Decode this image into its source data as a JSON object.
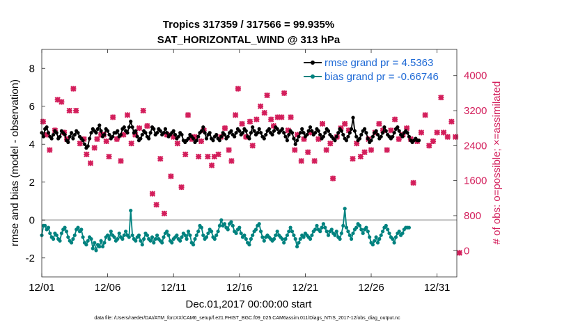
{
  "chart_data": {
    "type": "line",
    "title": [
      "Tropics 317359 / 317566 = 99.935%",
      "SAT_HORIZONTAL_WIND @ 313 hPa"
    ],
    "xlabel": "Dec.01,2017 00:00:00 start",
    "ylabel": "rmse and bias (model - observation)",
    "y2label": "# of obs: o=possible; ×=assimilated",
    "footnote": "data file: /Users/raeder/DAI/ATM_forcXX/CAM6_setup/f.e21.FHIST_BGC.f09_025.CAM6assim.011/Diags_NTrS_2017-12/obs_diag_output.nc",
    "x_range": [
      0,
      31.5
    ],
    "ylim": [
      -3,
      9
    ],
    "y2lim": [
      -600,
      4600
    ],
    "x_ticks": [
      0,
      5,
      10,
      15,
      20,
      25,
      30
    ],
    "x_tick_labels": [
      "12/01",
      "12/06",
      "12/11",
      "12/16",
      "12/21",
      "12/26",
      "12/31"
    ],
    "y_ticks": [
      -2,
      0,
      2,
      4,
      6,
      8
    ],
    "y2_ticks": [
      0,
      800,
      1600,
      2400,
      3200,
      4000
    ],
    "zero_line": 0,
    "x_step_days": 0.125,
    "series": [
      {
        "name": "rmse",
        "legend": "rmse grand pr = 4.5363",
        "axis": "left",
        "color": "#000000",
        "values": [
          4.6,
          4.4,
          4.8,
          4.9,
          4.6,
          4.4,
          4.3,
          4.5,
          4.7,
          4.6,
          4.3,
          4.4,
          4.7,
          4.6,
          4.5,
          4.2,
          4.1,
          4.4,
          4.6,
          4.3,
          4.5,
          4.7,
          4.6,
          4.4,
          4.3,
          4.2,
          4.0,
          3.8,
          3.9,
          4.3,
          4.6,
          4.8,
          4.7,
          4.6,
          4.8,
          5.0,
          4.7,
          4.4,
          4.5,
          4.8,
          4.7,
          4.5,
          4.3,
          4.4,
          4.6,
          4.6,
          4.7,
          4.4,
          4.5,
          4.8,
          4.9,
          4.7,
          4.6,
          4.9,
          5.2,
          4.9,
          4.6,
          4.7,
          4.4,
          4.2,
          4.3,
          4.5,
          4.7,
          4.6,
          4.4,
          4.3,
          4.6,
          4.9,
          4.8,
          4.5,
          4.6,
          4.8,
          4.7,
          4.5,
          4.6,
          4.8,
          4.6,
          4.4,
          4.5,
          4.6,
          4.7,
          4.5,
          4.3,
          4.4,
          4.6,
          4.5,
          4.2,
          4.1,
          4.2,
          4.3,
          4.5,
          4.4,
          4.3,
          4.1,
          4.2,
          4.4,
          4.6,
          4.7,
          4.9,
          4.6,
          4.3,
          4.5,
          4.6,
          4.3,
          4.2,
          4.4,
          4.5,
          4.3,
          4.2,
          4.4,
          4.6,
          4.5,
          4.3,
          4.4,
          4.6,
          4.7,
          4.5,
          4.4,
          4.6,
          4.8,
          4.7,
          4.5,
          4.6,
          4.8,
          4.7,
          4.4,
          4.3,
          4.6,
          4.9,
          4.7,
          4.5,
          4.6,
          4.8,
          4.6,
          4.4,
          4.3,
          4.5,
          4.7,
          4.8,
          4.6,
          4.5,
          4.7,
          4.9,
          4.8,
          4.6,
          4.7,
          4.8,
          4.6,
          4.4,
          4.2,
          4.5,
          4.7,
          4.6,
          4.3,
          4.0,
          4.2,
          4.4,
          4.6,
          4.8,
          4.6,
          4.4,
          4.5,
          4.7,
          4.9,
          4.7,
          4.5,
          4.6,
          4.8,
          4.7,
          4.5,
          4.3,
          4.4,
          4.6,
          4.8,
          4.7,
          4.5,
          4.4,
          4.3,
          4.2,
          4.4,
          4.6,
          4.8,
          4.7,
          4.5,
          4.3,
          4.2,
          4.4,
          4.6,
          4.8,
          5.4,
          4.7,
          4.4,
          4.2,
          4.3,
          4.5,
          4.7,
          4.8,
          4.6,
          4.3,
          4.1,
          4.2,
          4.4,
          4.6,
          4.7,
          4.5,
          4.3,
          4.4,
          4.6,
          4.9,
          4.7,
          4.5,
          4.4,
          4.3,
          4.4,
          4.6,
          4.8,
          4.9,
          4.7,
          4.5,
          4.4,
          4.6,
          4.7,
          4.6,
          4.4,
          4.2,
          4.1,
          4.2,
          4.3,
          4.2,
          4.2
        ]
      },
      {
        "name": "bias",
        "legend": "bias grand pr = -0.66746",
        "axis": "left",
        "color": "#00827f",
        "values": [
          -0.8,
          -0.3,
          -0.3,
          -0.5,
          -0.4,
          -0.7,
          -0.9,
          -1.0,
          -0.7,
          -0.8,
          -1.0,
          -1.1,
          -0.7,
          -0.5,
          -0.4,
          -0.6,
          -0.9,
          -1.1,
          -1.2,
          -1.0,
          -0.8,
          -0.5,
          -0.4,
          -0.6,
          -0.5,
          -0.9,
          -1.2,
          -1.3,
          -1.1,
          -0.9,
          -1.0,
          -1.5,
          -1.2,
          -1.6,
          -1.3,
          -1.4,
          -1.1,
          -1.4,
          -1.2,
          -0.9,
          -0.8,
          -1.0,
          -0.6,
          -0.8,
          -0.9,
          -1.1,
          -1.0,
          -0.7,
          -0.9,
          -1.0,
          -0.8,
          -0.6,
          -0.8,
          -0.9,
          0.5,
          -0.8,
          -1.0,
          -1.1,
          -0.9,
          -0.8,
          -1.1,
          -1.3,
          -1.0,
          -0.7,
          -0.8,
          -1.0,
          -1.1,
          -0.9,
          -1.2,
          -1.0,
          -0.8,
          -1.0,
          -1.1,
          -1.2,
          -0.9,
          -0.7,
          -0.6,
          -0.8,
          -1.1,
          -1.2,
          -1.0,
          -0.9,
          -0.8,
          -1.0,
          -1.1,
          -0.9,
          -0.7,
          -0.8,
          -1.0,
          -0.6,
          -0.8,
          -1.2,
          -1.3,
          -1.0,
          -0.8,
          -0.6,
          -0.3,
          -0.4,
          -0.8,
          -1.0,
          -0.9,
          -0.7,
          -0.5,
          -0.6,
          -0.9,
          -1.0,
          -0.8,
          -0.6,
          -0.3,
          0.0,
          -0.3,
          -0.2,
          -0.4,
          -0.5,
          -0.2,
          -0.1,
          -0.3,
          -0.6,
          -0.7,
          -0.5,
          -0.4,
          -0.7,
          -0.9,
          -0.8,
          -1.0,
          -1.2,
          -1.3,
          -1.0,
          -0.8,
          -0.6,
          -0.5,
          -0.3,
          -0.2,
          -0.6,
          -0.9,
          -1.1,
          -0.9,
          -0.8,
          -0.9,
          -1.0,
          -1.1,
          -1.0,
          -0.8,
          -0.6,
          -0.8,
          -0.9,
          -1.0,
          -1.2,
          -1.0,
          -0.8,
          -0.6,
          -0.4,
          -0.6,
          -0.8,
          -1.0,
          -1.4,
          -1.2,
          -1.0,
          -0.8,
          -0.9,
          -0.7,
          -0.8,
          -0.9,
          -1.0,
          -0.8,
          -0.6,
          -0.5,
          -0.3,
          -0.5,
          -0.6,
          -0.4,
          -0.2,
          -0.4,
          -0.6,
          -0.8,
          -0.6,
          -0.5,
          -0.7,
          -0.8,
          -0.6,
          -0.9,
          -1.0,
          -0.7,
          -0.3,
          0.6,
          -0.4,
          -0.6,
          -0.8,
          -1.0,
          -0.7,
          -0.5,
          -0.4,
          -0.2,
          -0.3,
          -0.5,
          -0.7,
          -0.5,
          -0.4,
          -0.6,
          -0.9,
          -1.2,
          -1.3,
          -1.1,
          -0.9,
          -1.2,
          -1.0,
          -0.8,
          -0.6,
          -0.4,
          -0.3,
          -0.5,
          -0.7,
          -0.9,
          -1.0,
          -1.2,
          -0.9,
          -0.7,
          -0.6,
          -0.8,
          -0.7,
          -0.5,
          -0.4,
          -0.4,
          -0.4
        ]
      },
      {
        "name": "# obs assimilated",
        "axis": "right",
        "color": "#d31e5b",
        "marker": "x",
        "points": [
          [
            0.1,
            2950
          ],
          [
            0.4,
            2650
          ],
          [
            0.6,
            2300
          ],
          [
            1.0,
            2750
          ],
          [
            1.2,
            3450
          ],
          [
            1.5,
            3400
          ],
          [
            1.7,
            2700
          ],
          [
            1.9,
            2550
          ],
          [
            2.1,
            3200
          ],
          [
            2.4,
            3700
          ],
          [
            2.6,
            3200
          ],
          [
            2.9,
            2450
          ],
          [
            3.2,
            2550
          ],
          [
            3.4,
            2200
          ],
          [
            3.7,
            2000
          ],
          [
            4.0,
            2350
          ],
          [
            4.2,
            2550
          ],
          [
            4.5,
            2650
          ],
          [
            4.7,
            2650
          ],
          [
            4.9,
            2500
          ],
          [
            5.1,
            2150
          ],
          [
            5.4,
            3050
          ],
          [
            5.7,
            2550
          ],
          [
            6.0,
            2050
          ],
          [
            6.2,
            2650
          ],
          [
            6.5,
            3100
          ],
          [
            6.8,
            2450
          ],
          [
            7.1,
            2650
          ],
          [
            7.4,
            2800
          ],
          [
            7.7,
            3200
          ],
          [
            8.0,
            2850
          ],
          [
            8.4,
            1300
          ],
          [
            8.7,
            1050
          ],
          [
            9.0,
            2100
          ],
          [
            9.3,
            850
          ],
          [
            9.5,
            2650
          ],
          [
            9.8,
            1700
          ],
          [
            10.0,
            2600
          ],
          [
            10.3,
            2450
          ],
          [
            10.6,
            1450
          ],
          [
            10.9,
            2200
          ],
          [
            11.1,
            3100
          ],
          [
            11.4,
            2550
          ],
          [
            11.6,
            2600
          ],
          [
            11.9,
            2150
          ],
          [
            12.1,
            2500
          ],
          [
            12.3,
            2750
          ],
          [
            12.6,
            2150
          ],
          [
            12.9,
            1950
          ],
          [
            13.1,
            2150
          ],
          [
            13.4,
            2200
          ],
          [
            13.6,
            2600
          ],
          [
            13.9,
            2800
          ],
          [
            14.2,
            2300
          ],
          [
            14.4,
            2050
          ],
          [
            14.7,
            3100
          ],
          [
            14.9,
            3700
          ],
          [
            15.2,
            2900
          ],
          [
            15.5,
            2600
          ],
          [
            15.8,
            2950
          ],
          [
            16.0,
            2400
          ],
          [
            16.3,
            3000
          ],
          [
            16.6,
            3300
          ],
          [
            16.9,
            3150
          ],
          [
            17.1,
            3550
          ],
          [
            17.4,
            3000
          ],
          [
            17.6,
            2850
          ],
          [
            17.9,
            3050
          ],
          [
            18.2,
            3050
          ],
          [
            18.4,
            3600
          ],
          [
            18.7,
            2750
          ],
          [
            18.9,
            3050
          ],
          [
            19.2,
            2300
          ],
          [
            19.4,
            2650
          ],
          [
            19.7,
            2050
          ],
          [
            19.9,
            2550
          ],
          [
            20.2,
            2250
          ],
          [
            20.4,
            2700
          ],
          [
            20.7,
            2050
          ],
          [
            21.0,
            2550
          ],
          [
            21.3,
            2900
          ],
          [
            21.6,
            2300
          ],
          [
            21.9,
            2450
          ],
          [
            22.1,
            1650
          ],
          [
            22.4,
            2600
          ],
          [
            22.7,
            2800
          ],
          [
            23.0,
            2900
          ],
          [
            23.3,
            2750
          ],
          [
            23.6,
            2100
          ],
          [
            23.9,
            2450
          ],
          [
            24.2,
            2150
          ],
          [
            24.5,
            2250
          ],
          [
            24.8,
            2550
          ],
          [
            25.0,
            2300
          ],
          [
            25.3,
            2700
          ],
          [
            25.6,
            2900
          ],
          [
            25.9,
            2750
          ],
          [
            26.2,
            2300
          ],
          [
            26.5,
            2750
          ],
          [
            26.8,
            3000
          ],
          [
            27.1,
            2550
          ],
          [
            27.4,
            2650
          ],
          [
            27.7,
            2800
          ],
          [
            28.0,
            2550
          ],
          [
            28.2,
            1550
          ],
          [
            28.5,
            2500
          ],
          [
            28.8,
            2700
          ],
          [
            29.1,
            3100
          ],
          [
            29.4,
            2400
          ],
          [
            29.7,
            2500
          ],
          [
            30.0,
            2700
          ],
          [
            30.3,
            3500
          ],
          [
            30.5,
            2700
          ],
          [
            30.8,
            2600
          ],
          [
            31.1,
            2950
          ],
          [
            31.4,
            2600
          ],
          [
            31.7,
            -50
          ]
        ]
      }
    ]
  }
}
